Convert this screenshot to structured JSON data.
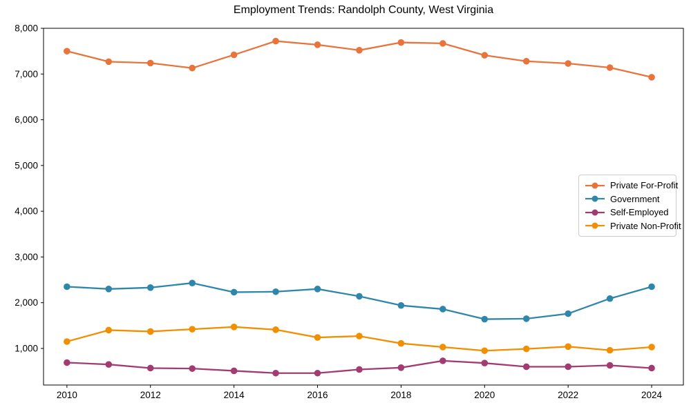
{
  "chart_data": {
    "type": "line",
    "title": "Employment Trends: Randolph County, West Virginia",
    "xlabel": "",
    "ylabel": "",
    "x": [
      2010,
      2011,
      2012,
      2013,
      2014,
      2015,
      2016,
      2017,
      2018,
      2019,
      2020,
      2021,
      2022,
      2023,
      2024
    ],
    "series": [
      {
        "name": "Private For-Profit",
        "color": "#E8743B",
        "values": [
          7500,
          7270,
          7240,
          7130,
          7420,
          7720,
          7640,
          7520,
          7690,
          7670,
          7410,
          7280,
          7230,
          7140,
          6930
        ]
      },
      {
        "name": "Government",
        "color": "#2E86AB",
        "values": [
          2350,
          2300,
          2330,
          2430,
          2230,
          2240,
          2300,
          2140,
          1940,
          1860,
          1640,
          1650,
          1760,
          2090,
          2350
        ]
      },
      {
        "name": "Self-Employed",
        "color": "#A23B72",
        "values": [
          690,
          650,
          570,
          560,
          510,
          460,
          460,
          540,
          580,
          730,
          680,
          600,
          600,
          630,
          570
        ]
      },
      {
        "name": "Private Non-Profit",
        "color": "#F18F01",
        "values": [
          1150,
          1400,
          1370,
          1420,
          1470,
          1410,
          1240,
          1270,
          1110,
          1030,
          950,
          990,
          1040,
          960,
          1030
        ]
      }
    ],
    "xticks": [
      2010,
      2012,
      2014,
      2016,
      2018,
      2020,
      2022,
      2024
    ],
    "yticks": [
      1000,
      2000,
      3000,
      4000,
      5000,
      6000,
      7000,
      8000
    ],
    "ytick_labels": [
      "1,000",
      "2,000",
      "3,000",
      "4,000",
      "5,000",
      "6,000",
      "7,000",
      "8,000"
    ],
    "xlim": [
      2009.44,
      2024.76
    ],
    "ylim": [
      200,
      8000
    ],
    "grid": false,
    "legend_position": "center-right",
    "axis_color": "#000000",
    "background_color": "#ffffff"
  }
}
